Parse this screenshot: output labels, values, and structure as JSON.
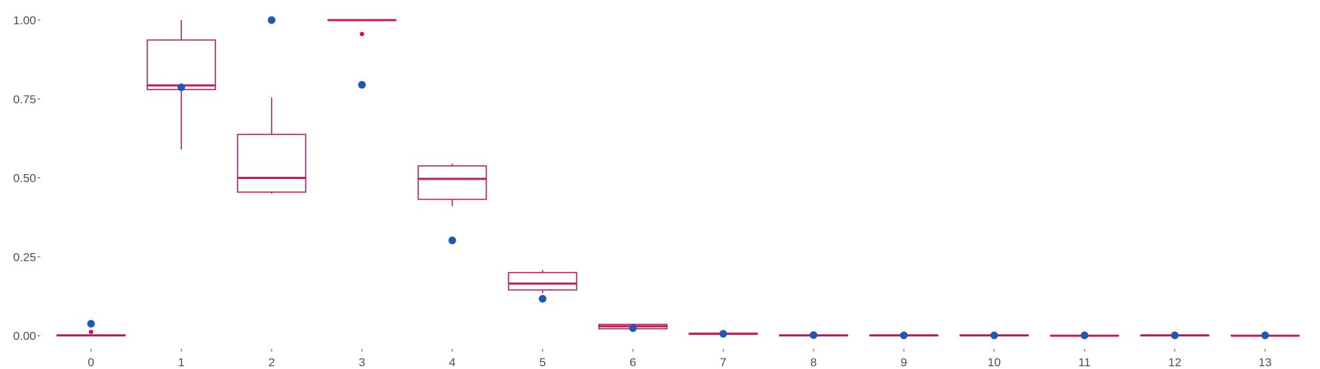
{
  "chart_data": {
    "type": "box",
    "title": "",
    "xlabel": "",
    "ylabel": "",
    "categories": [
      "0",
      "1",
      "2",
      "3",
      "4",
      "5",
      "6",
      "7",
      "8",
      "9",
      "10",
      "11",
      "12",
      "13"
    ],
    "ylim": [
      -0.04,
      1.04
    ],
    "yticks": [
      0.0,
      0.25,
      0.5,
      0.75,
      1.0
    ],
    "ytick_labels": [
      "0.00",
      "0.25",
      "0.50",
      "0.75",
      "1.00"
    ],
    "grid": false,
    "colors": {
      "box": "#c2185b",
      "point": "#1f57b5"
    },
    "boxes": [
      {
        "category": "0",
        "q1": 0.0,
        "median": 0.001,
        "q3": 0.002,
        "whisker_low": 0.0,
        "whisker_high": 0.002,
        "outliers": [
          0.012
        ]
      },
      {
        "category": "1",
        "q1": 0.78,
        "median": 0.793,
        "q3": 0.937,
        "whisker_low": 0.59,
        "whisker_high": 1.0,
        "outliers": []
      },
      {
        "category": "2",
        "q1": 0.455,
        "median": 0.5,
        "q3": 0.638,
        "whisker_low": 0.45,
        "whisker_high": 0.755,
        "outliers": []
      },
      {
        "category": "3",
        "q1": 1.0,
        "median": 1.0,
        "q3": 1.0,
        "whisker_low": 1.0,
        "whisker_high": 1.0,
        "outliers": [
          0.956
        ]
      },
      {
        "category": "4",
        "q1": 0.432,
        "median": 0.497,
        "q3": 0.538,
        "whisker_low": 0.41,
        "whisker_high": 0.545,
        "outliers": []
      },
      {
        "category": "5",
        "q1": 0.145,
        "median": 0.165,
        "q3": 0.2,
        "whisker_low": 0.135,
        "whisker_high": 0.208,
        "outliers": []
      },
      {
        "category": "6",
        "q1": 0.022,
        "median": 0.03,
        "q3": 0.036,
        "whisker_low": 0.02,
        "whisker_high": 0.038,
        "outliers": []
      },
      {
        "category": "7",
        "q1": 0.005,
        "median": 0.006,
        "q3": 0.008,
        "whisker_low": 0.004,
        "whisker_high": 0.009,
        "outliers": []
      },
      {
        "category": "8",
        "q1": 0.0,
        "median": 0.001,
        "q3": 0.002,
        "whisker_low": 0.0,
        "whisker_high": 0.003,
        "outliers": []
      },
      {
        "category": "9",
        "q1": 0.0,
        "median": 0.001,
        "q3": 0.002,
        "whisker_low": 0.0,
        "whisker_high": 0.002,
        "outliers": []
      },
      {
        "category": "10",
        "q1": 0.0,
        "median": 0.001,
        "q3": 0.002,
        "whisker_low": 0.0,
        "whisker_high": 0.002,
        "outliers": []
      },
      {
        "category": "11",
        "q1": 0.0,
        "median": 0.0,
        "q3": 0.001,
        "whisker_low": 0.0,
        "whisker_high": 0.001,
        "outliers": []
      },
      {
        "category": "12",
        "q1": 0.0,
        "median": 0.001,
        "q3": 0.002,
        "whisker_low": 0.0,
        "whisker_high": 0.002,
        "outliers": []
      },
      {
        "category": "13",
        "q1": 0.0,
        "median": 0.0,
        "q3": 0.001,
        "whisker_low": 0.0,
        "whisker_high": 0.001,
        "outliers": []
      }
    ],
    "points": [
      {
        "category": "0",
        "value": 0.038
      },
      {
        "category": "1",
        "value": 0.787
      },
      {
        "category": "2",
        "value": 1.0
      },
      {
        "category": "3",
        "value": 0.795
      },
      {
        "category": "4",
        "value": 0.302
      },
      {
        "category": "5",
        "value": 0.117
      },
      {
        "category": "6",
        "value": 0.024
      },
      {
        "category": "7",
        "value": 0.006
      },
      {
        "category": "8",
        "value": 0.002
      },
      {
        "category": "9",
        "value": 0.001
      },
      {
        "category": "10",
        "value": 0.001
      },
      {
        "category": "11",
        "value": 0.001
      },
      {
        "category": "12",
        "value": 0.001
      },
      {
        "category": "13",
        "value": 0.001
      }
    ]
  }
}
